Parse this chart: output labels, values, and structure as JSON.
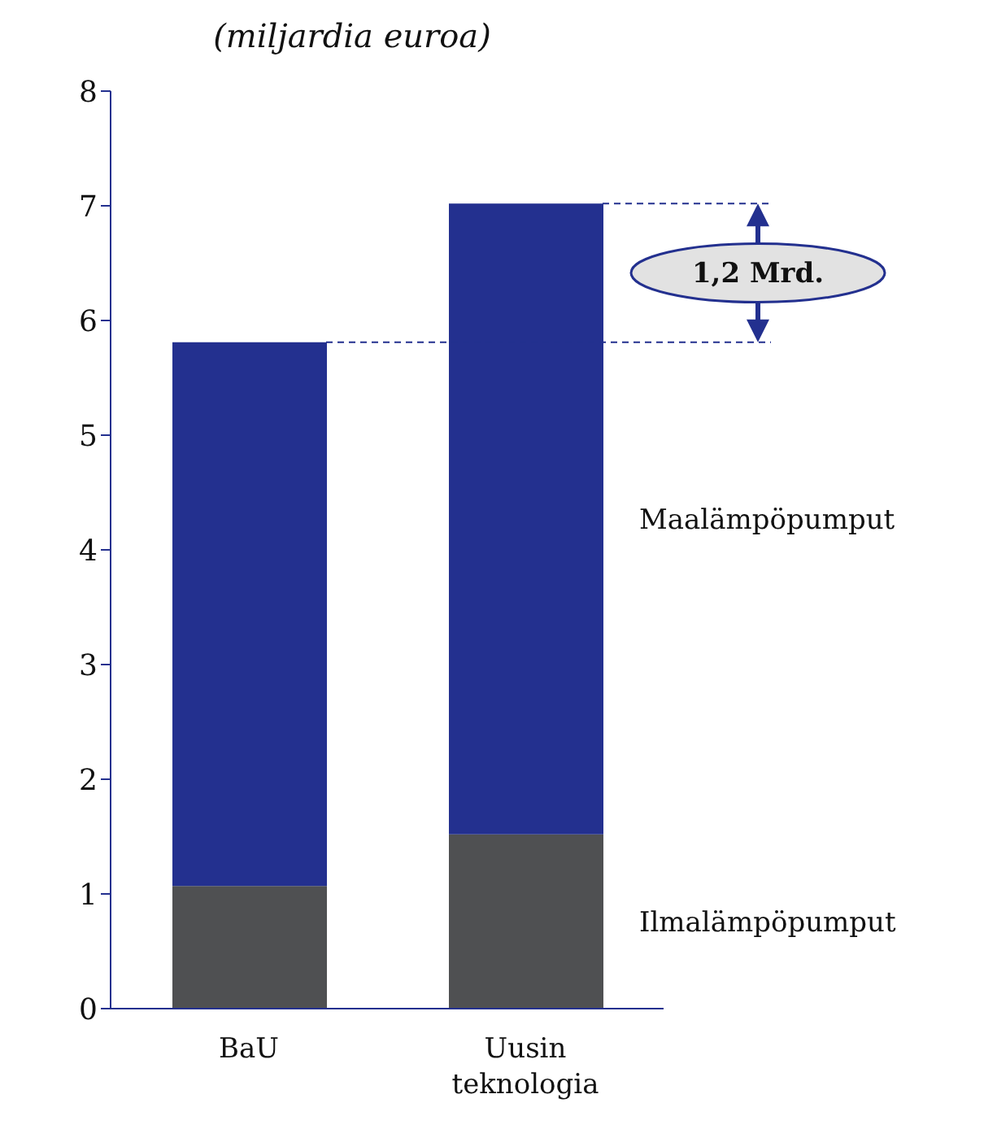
{
  "chart_data": {
    "type": "bar",
    "title": "(miljardia euroa)",
    "stacked": true,
    "categories": [
      "BaU",
      "Uusin teknologia"
    ],
    "series": [
      {
        "name": "Ilmalämpöpumput",
        "color": "#4f5052",
        "values": [
          1.07,
          1.52
        ]
      },
      {
        "name": "Maalämpöpumput",
        "color": "#23308f",
        "values": [
          4.74,
          5.5
        ]
      }
    ],
    "ylim": [
      0,
      8
    ],
    "yticks": [
      0,
      1,
      2,
      3,
      4,
      5,
      6,
      7,
      8
    ],
    "ref_lines": [
      {
        "axis": "y",
        "value": 5.81,
        "color": "#23308f",
        "line_style": "dashed"
      },
      {
        "axis": "y",
        "value": 7.02,
        "color": "#23308f",
        "line_style": "dashed"
      }
    ],
    "annotations": [
      "1,2 Mrd."
    ]
  }
}
